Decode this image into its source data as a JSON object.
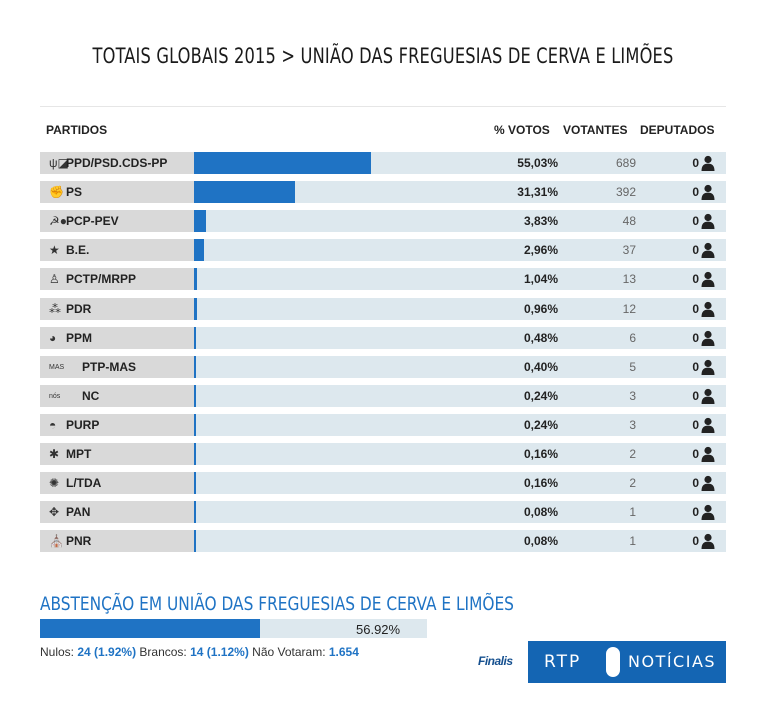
{
  "page_title": "TOTAIS GLOBAIS 2015 > UNIÃO DAS FREGUESIAS DE CERVA E LIMÕES",
  "headers": {
    "partidos": "PARTIDOS",
    "pct_votos": "% VOTOS",
    "votantes": "VOTANTES",
    "deputados": "DEPUTADOS"
  },
  "chart_data": {
    "type": "bar",
    "orientation": "horizontal",
    "categories": [
      "PPD/PSD.CDS-PP",
      "PS",
      "PCP-PEV",
      "B.E.",
      "PCTP/MRPP",
      "PDR",
      "PPM",
      "PTP-MAS",
      "NC",
      "PURP",
      "MPT",
      "L/TDA",
      "PAN",
      "PNR"
    ],
    "series": [
      {
        "name": "% VOTOS",
        "values": [
          55.03,
          31.31,
          3.83,
          2.96,
          1.04,
          0.96,
          0.48,
          0.4,
          0.24,
          0.24,
          0.16,
          0.16,
          0.08,
          0.08
        ]
      }
    ],
    "bar_scale_max": 100,
    "color": "#1f73c4"
  },
  "rows": [
    {
      "party": "PPD/PSD.CDS-PP",
      "pct": "55,03%",
      "votes": "689",
      "seats": "0",
      "logo": "ψ◪"
    },
    {
      "party": "PS",
      "pct": "31,31%",
      "votes": "392",
      "seats": "0",
      "logo": "✊"
    },
    {
      "party": "PCP-PEV",
      "pct": "3,83%",
      "votes": "48",
      "seats": "0",
      "logo": "☭●"
    },
    {
      "party": "B.E.",
      "pct": "2,96%",
      "votes": "37",
      "seats": "0",
      "logo": "★"
    },
    {
      "party": "PCTP/MRPP",
      "pct": "1,04%",
      "votes": "13",
      "seats": "0",
      "logo": "♙"
    },
    {
      "party": "PDR",
      "pct": "0,96%",
      "votes": "12",
      "seats": "0",
      "logo": "⁂"
    },
    {
      "party": "PPM",
      "pct": "0,48%",
      "votes": "6",
      "seats": "0",
      "logo": "◕"
    },
    {
      "party": "PTP-MAS",
      "pct": "0,40%",
      "votes": "5",
      "seats": "0",
      "logo": "MAS"
    },
    {
      "party": "NC",
      "pct": "0,24%",
      "votes": "3",
      "seats": "0",
      "logo": "nós"
    },
    {
      "party": "PURP",
      "pct": "0,24%",
      "votes": "3",
      "seats": "0",
      "logo": "◓"
    },
    {
      "party": "MPT",
      "pct": "0,16%",
      "votes": "2",
      "seats": "0",
      "logo": "✱"
    },
    {
      "party": "L/TDA",
      "pct": "0,16%",
      "votes": "2",
      "seats": "0",
      "logo": "✺"
    },
    {
      "party": "PAN",
      "pct": "0,08%",
      "votes": "1",
      "seats": "0",
      "logo": "✥"
    },
    {
      "party": "PNR",
      "pct": "0,08%",
      "votes": "1",
      "seats": "0",
      "logo": "⛪"
    }
  ],
  "abstention": {
    "title": "ABSTENÇÃO EM UNIÃO DAS FREGUESIAS DE CERVA E LIMÕES",
    "pct_label": "56.92%",
    "value": 56.92,
    "nulos_label": "Nulos:",
    "nulos_value": "24 (1.92%)",
    "brancos_label": "Brancos:",
    "brancos_value": "14 (1.12%)",
    "nao_label": "Não Votaram:",
    "nao_value": "1.654"
  },
  "branding": {
    "finalis": "Finalis",
    "rtp": "RTP",
    "noticias": "NOTÍCIAS",
    "color": "#1465b3"
  }
}
